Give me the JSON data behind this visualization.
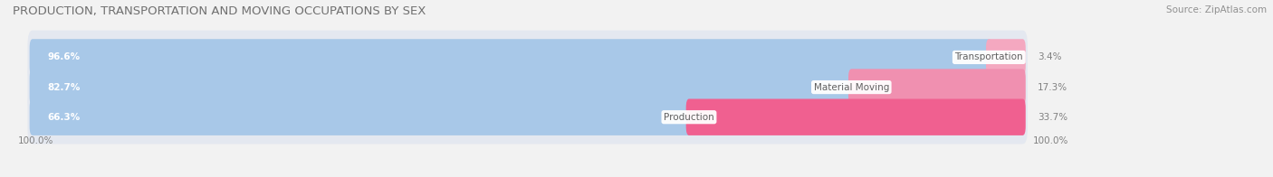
{
  "title": "PRODUCTION, TRANSPORTATION AND MOVING OCCUPATIONS BY SEX",
  "source": "Source: ZipAtlas.com",
  "categories": [
    "Transportation",
    "Material Moving",
    "Production"
  ],
  "male_pct": [
    96.6,
    82.7,
    66.3
  ],
  "female_pct": [
    3.4,
    17.3,
    33.7
  ],
  "male_color": "#a8c8e8",
  "female_color_list": [
    "#f4a8c0",
    "#f090b0",
    "#f06090"
  ],
  "bar_bg_color": "#e4e8f0",
  "title_color": "#707070",
  "source_color": "#909090",
  "label_color": "#808080",
  "cat_text_color": "#606060",
  "male_label_color": "white",
  "bg_color": "#f2f2f2",
  "title_fontsize": 9.5,
  "source_fontsize": 7.5,
  "bar_label_fontsize": 7.5,
  "category_fontsize": 7.5,
  "axis_label_fontsize": 7.5,
  "left_axis_label": "100.0%",
  "right_axis_label": "100.0%"
}
